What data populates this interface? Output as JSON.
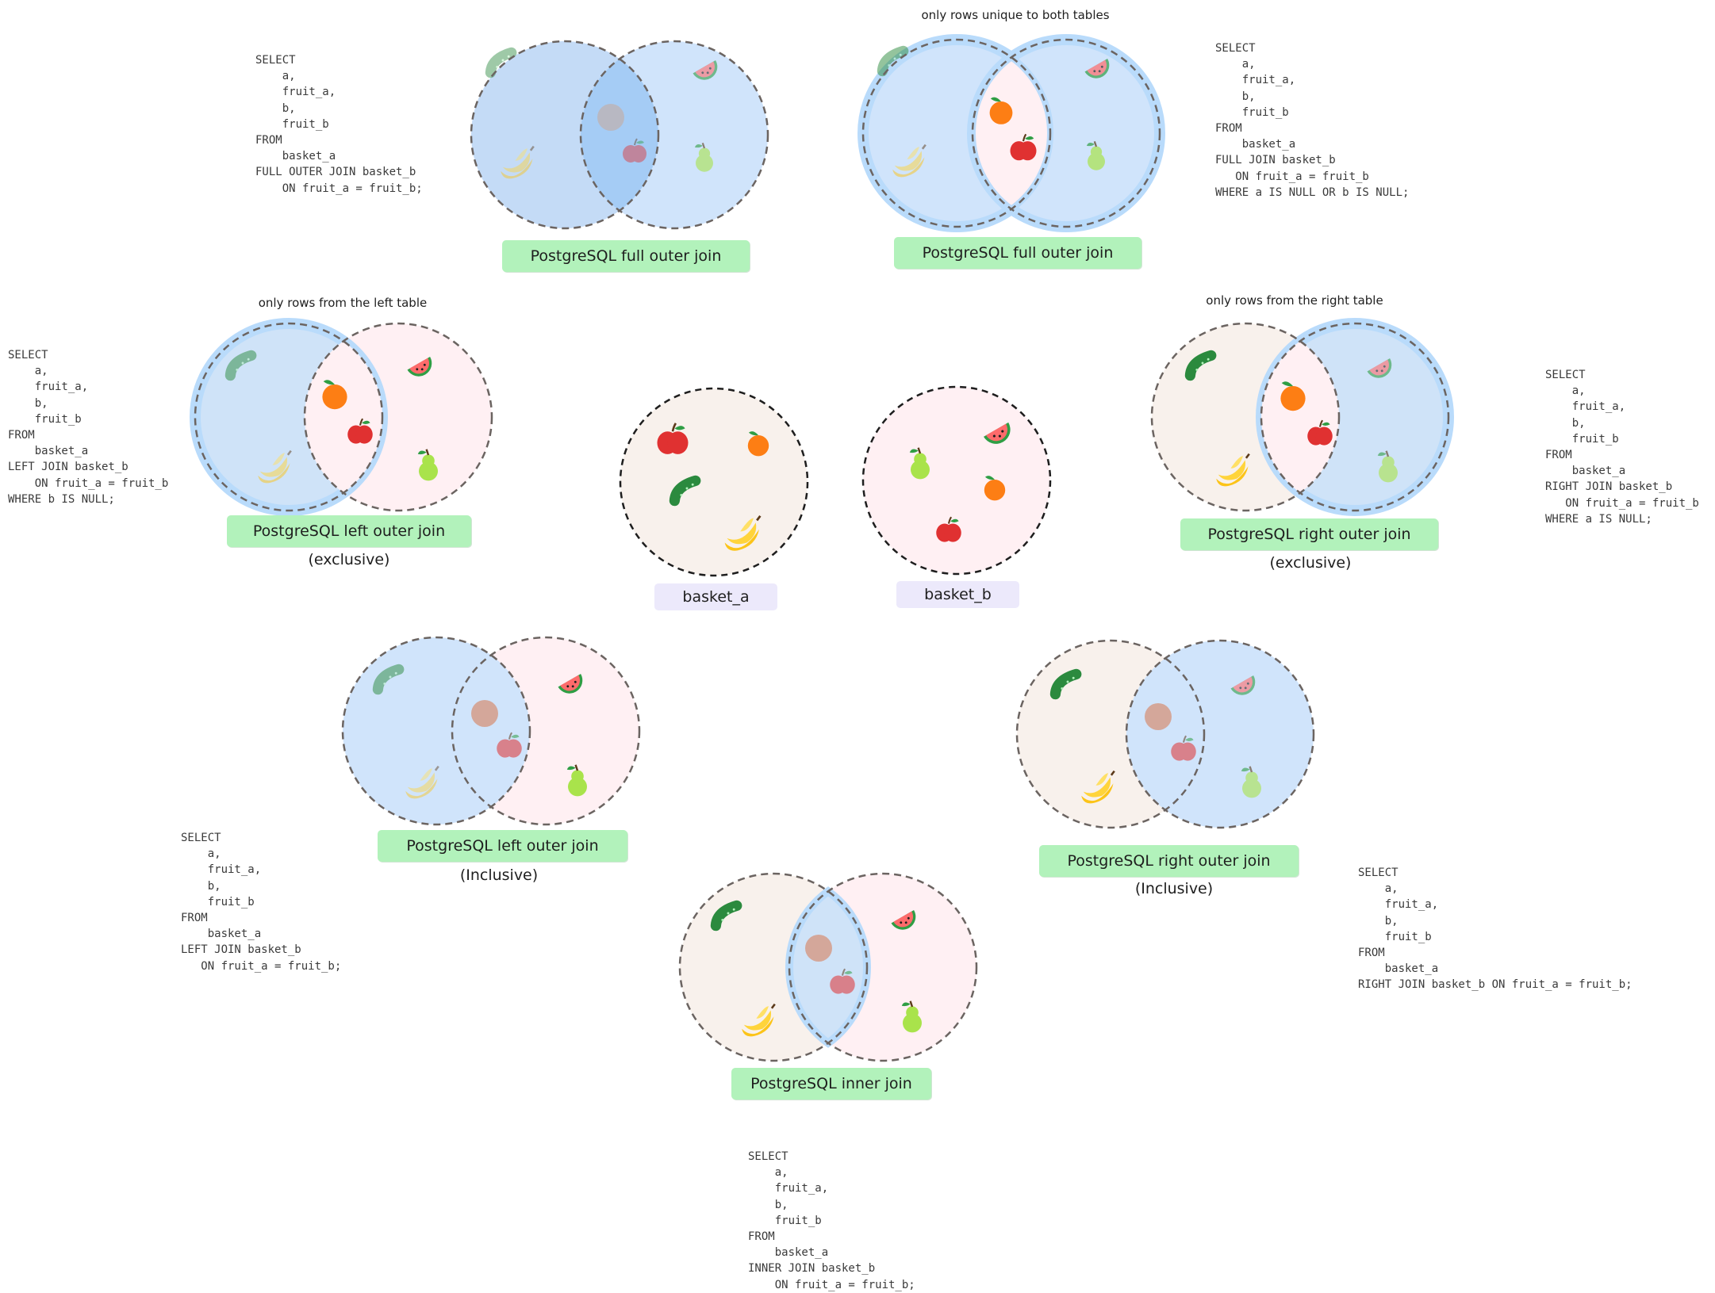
{
  "colors": {
    "blue_fill": "#a5d8ff",
    "soft_blue": "#d0e4fb",
    "pink_fill": "#fff0f3",
    "beige_fill": "#f8f1ec",
    "label_green": "#b2f2bb",
    "basket_lavender": "#ece9fb",
    "outline": "#6b6461"
  },
  "baskets": {
    "a": {
      "label": "basket_a",
      "fruits": [
        "apple-icon",
        "orange-icon",
        "cucumber-icon",
        "banana-icon"
      ]
    },
    "b": {
      "label": "basket_b",
      "fruits": [
        "watermelon-icon",
        "pear-icon",
        "orange-icon",
        "apple-icon"
      ]
    }
  },
  "joins": {
    "full_outer": {
      "title": "PostgreSQL full outer join",
      "sql": "SELECT\n    a,\n    fruit_a,\n    b,\n    fruit_b\nFROM\n    basket_a\nFULL OUTER JOIN basket_b\n    ON fruit_a = fruit_b;"
    },
    "full_outer_exclusive": {
      "title": "PostgreSQL full outer join",
      "note": "only rows unique to both tables",
      "sql": "SELECT\n    a,\n    fruit_a,\n    b,\n    fruit_b\nFROM\n    basket_a\nFULL JOIN basket_b\n   ON fruit_a = fruit_b\nWHERE a IS NULL OR b IS NULL;"
    },
    "left_exclusive": {
      "title": "PostgreSQL left outer join",
      "subtitle": "(exclusive)",
      "note": "only rows from the left table",
      "sql": "SELECT\n    a,\n    fruit_a,\n    b,\n    fruit_b\nFROM\n    basket_a\nLEFT JOIN basket_b\n    ON fruit_a = fruit_b\nWHERE b IS NULL;"
    },
    "right_exclusive": {
      "title": "PostgreSQL right outer join",
      "subtitle": "(exclusive)",
      "note": "only rows from the right table",
      "sql": "SELECT\n    a,\n    fruit_a,\n    b,\n    fruit_b\nFROM\n    basket_a\nRIGHT JOIN basket_b\n   ON fruit_a = fruit_b\nWHERE a IS NULL;"
    },
    "left_inclusive": {
      "title": "PostgreSQL left outer join",
      "subtitle": "(Inclusive)",
      "sql": "SELECT\n    a,\n    fruit_a,\n    b,\n    fruit_b\nFROM\n    basket_a\nLEFT JOIN basket_b\n   ON fruit_a = fruit_b;"
    },
    "right_inclusive": {
      "title": "PostgreSQL right outer join",
      "subtitle": "(Inclusive)",
      "sql": "SELECT\n    a,\n    fruit_a,\n    b,\n    fruit_b\nFROM\n    basket_a\nRIGHT JOIN basket_b ON fruit_a = fruit_b;"
    },
    "inner": {
      "title": "PostgreSQL inner join",
      "sql": "SELECT\n    a,\n    fruit_a,\n    b,\n    fruit_b\nFROM\n    basket_a\nINNER JOIN basket_b\n    ON fruit_a = fruit_b;"
    }
  }
}
